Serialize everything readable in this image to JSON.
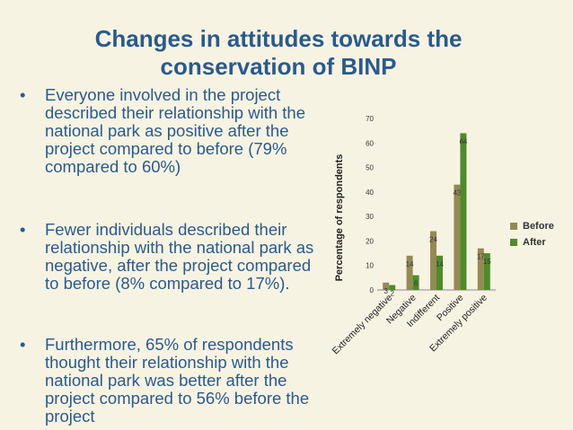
{
  "slide": {
    "title_line1": "Changes in attitudes towards the",
    "title_line2": "conservation of BINP",
    "bullets": [
      "Everyone involved in the project described their relationship with the national park as positive after the project compared to before (79% compared to 60%)",
      "Fewer individuals described their relationship with the national park as negative, after the project compared to before (8% compared to 17%).",
      "Furthermore, 65% of respondents thought their relationship with the national park was better after the project compared to 56% before the project"
    ],
    "bullet_symbol": "•"
  },
  "colors": {
    "before": "#948a54",
    "after": "#4f8a2c",
    "text": "#2b5a8a"
  },
  "chart_data": {
    "type": "bar",
    "categories": [
      "Extremely negative",
      "Negative",
      "Indifferent",
      "Positive",
      "Extremely positive"
    ],
    "series": [
      {
        "name": "Before",
        "values": [
          3,
          14,
          24,
          43,
          17
        ]
      },
      {
        "name": "After",
        "values": [
          2,
          6,
          14,
          64,
          15
        ]
      }
    ],
    "title": "",
    "xlabel": "",
    "ylabel": "Percentage of respondents",
    "ylim": [
      0,
      70
    ],
    "yticks": [
      0,
      10,
      20,
      30,
      40,
      50,
      60,
      70
    ],
    "legend": "right"
  }
}
